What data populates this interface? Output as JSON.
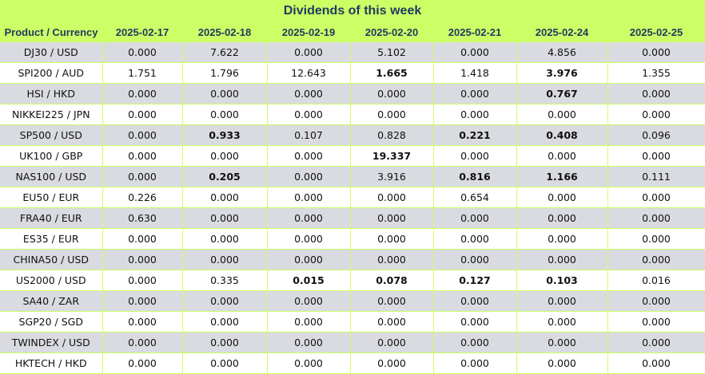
{
  "title": "Dividends of this week",
  "header": {
    "product": "Product / Currency",
    "dates": [
      "2025-02-17",
      "2025-02-18",
      "2025-02-19",
      "2025-02-20",
      "2025-02-21",
      "2025-02-24",
      "2025-02-25"
    ]
  },
  "rows": [
    {
      "product": "DJ30 / USD",
      "values": [
        "0.000",
        "7.622",
        "0.000",
        "5.102",
        "0.000",
        "4.856",
        "0.000"
      ],
      "bold": [
        false,
        false,
        false,
        false,
        false,
        false,
        false
      ]
    },
    {
      "product": "SPI200 / AUD",
      "values": [
        "1.751",
        "1.796",
        "12.643",
        "1.665",
        "1.418",
        "3.976",
        "1.355"
      ],
      "bold": [
        false,
        false,
        false,
        true,
        false,
        true,
        false
      ]
    },
    {
      "product": "HSI / HKD",
      "values": [
        "0.000",
        "0.000",
        "0.000",
        "0.000",
        "0.000",
        "0.767",
        "0.000"
      ],
      "bold": [
        false,
        false,
        false,
        false,
        false,
        true,
        false
      ]
    },
    {
      "product": "NIKKEI225 / JPN",
      "values": [
        "0.000",
        "0.000",
        "0.000",
        "0.000",
        "0.000",
        "0.000",
        "0.000"
      ],
      "bold": [
        false,
        false,
        false,
        false,
        false,
        false,
        false
      ]
    },
    {
      "product": "SP500 / USD",
      "values": [
        "0.000",
        "0.933",
        "0.107",
        "0.828",
        "0.221",
        "0.408",
        "0.096"
      ],
      "bold": [
        false,
        true,
        false,
        false,
        true,
        true,
        false
      ]
    },
    {
      "product": "UK100 / GBP",
      "values": [
        "0.000",
        "0.000",
        "0.000",
        "19.337",
        "0.000",
        "0.000",
        "0.000"
      ],
      "bold": [
        false,
        false,
        false,
        true,
        false,
        false,
        false
      ]
    },
    {
      "product": "NAS100 / USD",
      "values": [
        "0.000",
        "0.205",
        "0.000",
        "3.916",
        "0.816",
        "1.166",
        "0.111"
      ],
      "bold": [
        false,
        true,
        false,
        false,
        true,
        true,
        false
      ]
    },
    {
      "product": "EU50 / EUR",
      "values": [
        "0.226",
        "0.000",
        "0.000",
        "0.000",
        "0.654",
        "0.000",
        "0.000"
      ],
      "bold": [
        false,
        false,
        false,
        false,
        false,
        false,
        false
      ]
    },
    {
      "product": "FRA40 / EUR",
      "values": [
        "0.630",
        "0.000",
        "0.000",
        "0.000",
        "0.000",
        "0.000",
        "0.000"
      ],
      "bold": [
        false,
        false,
        false,
        false,
        false,
        false,
        false
      ]
    },
    {
      "product": "ES35 / EUR",
      "values": [
        "0.000",
        "0.000",
        "0.000",
        "0.000",
        "0.000",
        "0.000",
        "0.000"
      ],
      "bold": [
        false,
        false,
        false,
        false,
        false,
        false,
        false
      ]
    },
    {
      "product": "CHINA50 / USD",
      "values": [
        "0.000",
        "0.000",
        "0.000",
        "0.000",
        "0.000",
        "0.000",
        "0.000"
      ],
      "bold": [
        false,
        false,
        false,
        false,
        false,
        false,
        false
      ]
    },
    {
      "product": "US2000 / USD",
      "values": [
        "0.000",
        "0.335",
        "0.015",
        "0.078",
        "0.127",
        "0.103",
        "0.016"
      ],
      "bold": [
        false,
        false,
        true,
        true,
        true,
        true,
        false
      ]
    },
    {
      "product": "SA40 / ZAR",
      "values": [
        "0.000",
        "0.000",
        "0.000",
        "0.000",
        "0.000",
        "0.000",
        "0.000"
      ],
      "bold": [
        false,
        false,
        false,
        false,
        false,
        false,
        false
      ]
    },
    {
      "product": "SGP20 / SGD",
      "values": [
        "0.000",
        "0.000",
        "0.000",
        "0.000",
        "0.000",
        "0.000",
        "0.000"
      ],
      "bold": [
        false,
        false,
        false,
        false,
        false,
        false,
        false
      ]
    },
    {
      "product": "TWINDEX / USD",
      "values": [
        "0.000",
        "0.000",
        "0.000",
        "0.000",
        "0.000",
        "0.000",
        "0.000"
      ],
      "bold": [
        false,
        false,
        false,
        false,
        false,
        false,
        false
      ]
    },
    {
      "product": "HKTECH / HKD",
      "values": [
        "0.000",
        "0.000",
        "0.000",
        "0.000",
        "0.000",
        "0.000",
        "0.000"
      ],
      "bold": [
        false,
        false,
        false,
        false,
        false,
        false,
        false
      ]
    }
  ],
  "colors": {
    "header_bg": "#ccff66",
    "header_text": "#1f3a5f",
    "row_odd": "#d9dbe0",
    "row_even": "#ffffff"
  }
}
